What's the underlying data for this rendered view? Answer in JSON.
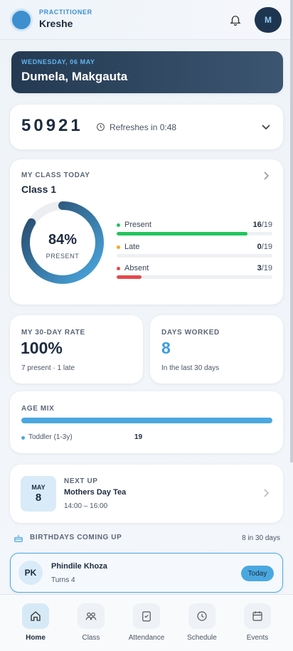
{
  "header": {
    "role": "PRACTITIONER",
    "name": "Kreshe",
    "avatar": "M"
  },
  "greeting": {
    "date": "WEDNESDAY, 06 MAY",
    "text": "Dumela, Makgauta"
  },
  "code": {
    "value": "50921",
    "refresh": "Refreshes in 0:48"
  },
  "class_today": {
    "heading": "MY CLASS TODAY",
    "class_name": "Class 1",
    "rate": {
      "value": 84,
      "label": "84%"
    },
    "rate_caption": "PRESENT",
    "rows": [
      {
        "label": "Present",
        "count": 16,
        "total": {
          "value": 19,
          "label": "/19"
        },
        "color": "#22c55e"
      },
      {
        "label": "Late",
        "count": 0,
        "total": {
          "value": 19,
          "label": "/19"
        },
        "color": "#f5a524"
      },
      {
        "label": "Absent",
        "count": 3,
        "total": {
          "value": 19,
          "label": "/19"
        },
        "color": "#e5484d"
      }
    ]
  },
  "rate_30": {
    "heading": "MY 30-DAY RATE",
    "value": "100%",
    "detail": "7 present · 1 late"
  },
  "days_worked": {
    "heading": "DAYS WORKED",
    "value": "8",
    "detail": "In the last 30 days"
  },
  "age_mix": {
    "heading": "AGE MIX",
    "groups": [
      {
        "label": "Toddler (1-3y)",
        "count": 19,
        "color": "#4aa8e0"
      }
    ]
  },
  "next_up": {
    "month": "MAY",
    "day": "8",
    "heading": "NEXT UP",
    "title": "Mothers Day Tea",
    "time": "14:00 – 16:00"
  },
  "birthdays": {
    "heading": "BIRTHDAYS COMING UP",
    "summary": "8 in 30 days",
    "items": [
      {
        "initials": "PK",
        "name": "Phindile Khoza",
        "detail": "Turns 4",
        "badge": "Today"
      }
    ]
  },
  "nav": [
    {
      "label": "Home",
      "active": true
    },
    {
      "label": "Class",
      "active": false
    },
    {
      "label": "Attendance",
      "active": false
    },
    {
      "label": "Schedule",
      "active": false
    },
    {
      "label": "Events",
      "active": false
    }
  ]
}
